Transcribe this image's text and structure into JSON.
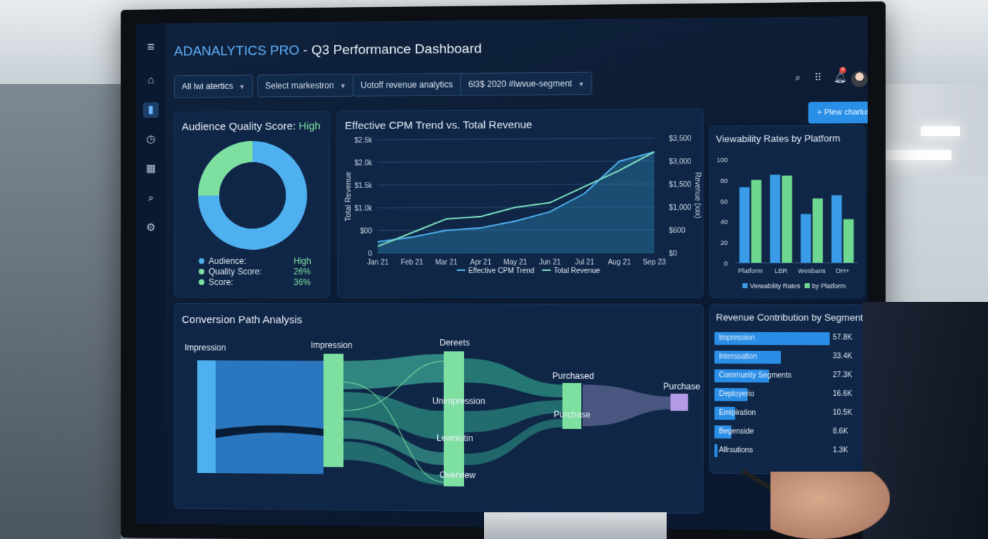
{
  "app": {
    "brand": "ADANALYTICS PRO",
    "title_rest": " - Q3 Performance Dashboard"
  },
  "sidebar": {
    "items": [
      {
        "icon": "home-icon",
        "glyph": "⌂"
      },
      {
        "icon": "bar-chart-icon",
        "glyph": "▮"
      },
      {
        "icon": "clock-icon",
        "glyph": "◷"
      },
      {
        "icon": "calendar-icon",
        "glyph": "▦"
      },
      {
        "icon": "search-icon",
        "glyph": "⌕"
      },
      {
        "icon": "gear-icon",
        "glyph": "⚙"
      }
    ]
  },
  "filters": [
    {
      "label": "All lwi atertics"
    },
    {
      "label": "Select markestron"
    },
    {
      "label": "Uotoff revenue analytics"
    },
    {
      "label": "6l3$ 2020 #lwvue-segment"
    }
  ],
  "new_button": "+ Plew charlus",
  "notifications": {
    "count": "3"
  },
  "audience": {
    "title": "Audience Quality Score:",
    "score": "High",
    "legend": [
      {
        "label": "Audience:",
        "value": "High"
      },
      {
        "label": "Quality Score:",
        "value": "26%"
      },
      {
        "label": "Score:",
        "value": "36%"
      }
    ],
    "colors": {
      "main": "#4fb0f0",
      "accent": "#7ee0a0"
    }
  },
  "cpm_chart": {
    "chart_data": {
      "type": "line",
      "title": "Effective CPM Trend vs. Total Revenue",
      "categories": [
        "Jan 21",
        "Feb 21",
        "Mar 21",
        "Apr 21",
        "May 21",
        "Jun 21",
        "Jul 21",
        "Aug 21",
        "Sep 23"
      ],
      "ylabel": "Total Revenue",
      "ylabel_right": "Revenue (xxx)",
      "left_ticks": [
        "$2.5k",
        "$2.0k",
        "$1.5k",
        "$1.0k",
        "$00",
        "0"
      ],
      "right_ticks": [
        "$3,500",
        "$3,000",
        "$1,500",
        "$1,000",
        "$600",
        "$0"
      ],
      "series": [
        {
          "name": "Effective CPM Trend",
          "values": [
            0.25,
            0.35,
            0.5,
            0.55,
            0.7,
            0.9,
            1.3,
            2.0,
            2.2
          ]
        },
        {
          "name": "Total Revenue",
          "values": [
            0.15,
            0.45,
            0.75,
            0.8,
            1.0,
            1.1,
            1.45,
            1.8,
            2.2
          ]
        }
      ],
      "ylim": [
        0,
        2.5
      ],
      "legend": "bottom"
    }
  },
  "viewability_chart": {
    "chart_data": {
      "type": "bar",
      "title": "Viewability Rates by Platform",
      "categories": [
        "Platform",
        "LBR",
        "Wesbans",
        "OH+"
      ],
      "series": [
        {
          "name": "Viewability Rates",
          "values": [
            73,
            85,
            47,
            65
          ]
        },
        {
          "name": "by Platform",
          "values": [
            80,
            84,
            62,
            42
          ]
        }
      ],
      "y_ticks": [
        "100",
        "80",
        "60",
        "40",
        "20",
        "0"
      ],
      "ylim": [
        0,
        100
      ],
      "legend": "bottom"
    }
  },
  "conversion": {
    "title": "Conversion Path Analysis",
    "nodes": {
      "n1": "Impression",
      "n2": "Impression",
      "n3": "Dereets",
      "n4": "Unimpression",
      "n5": "Lewniotin",
      "n6": "Overview",
      "n7": "Purchased",
      "n8": "Purchase",
      "n9": "Purchase"
    }
  },
  "segments": {
    "chart_data": {
      "type": "bar",
      "title": "Revenue Contribution by Segment",
      "categories": [
        "Impression",
        "Interssation",
        "Community Segments",
        "Deployerio",
        "Emipiration",
        "Begenside",
        "Allrsutions"
      ],
      "value_labels": [
        "57.8K",
        "33.4K",
        "27.3K",
        "16.6K",
        "10.5K",
        "8.6K",
        "1.3K"
      ],
      "values": [
        57.8,
        33.4,
        27.3,
        16.6,
        10.5,
        8.6,
        1.3
      ]
    }
  }
}
